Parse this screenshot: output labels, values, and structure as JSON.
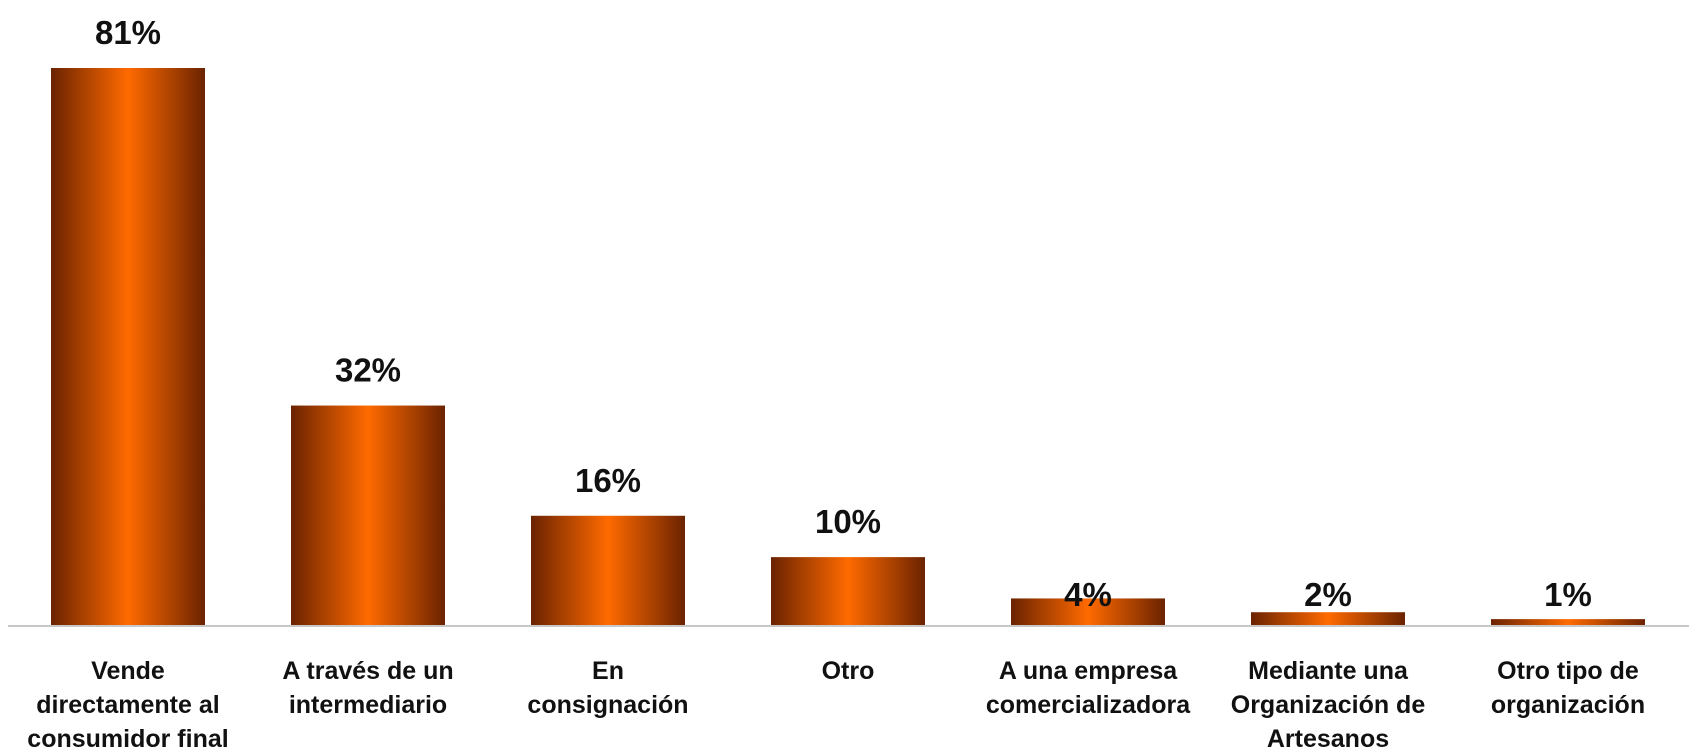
{
  "chart_data": {
    "type": "bar",
    "categories": [
      [
        "Vende",
        "directamente al",
        "consumidor final"
      ],
      [
        "A través de un",
        "intermediario"
      ],
      [
        "En",
        "consignación"
      ],
      [
        "Otro"
      ],
      [
        "A una empresa",
        "comercializadora"
      ],
      [
        "Mediante una",
        "Organización de",
        "Artesanos"
      ],
      [
        "Otro tipo de",
        "organización"
      ]
    ],
    "values": [
      81,
      32,
      16,
      10,
      4,
      2,
      1
    ],
    "value_labels": [
      "81%",
      "32%",
      "16%",
      "10%",
      "4%",
      "2%",
      "1%"
    ],
    "ylim": [
      0,
      81
    ],
    "grid": false,
    "legend": "none",
    "colors": {
      "bar_dark": "#6b2300",
      "bar_light": "#ff6a00",
      "axis": "#c8c8c8",
      "text": "#111111"
    }
  }
}
